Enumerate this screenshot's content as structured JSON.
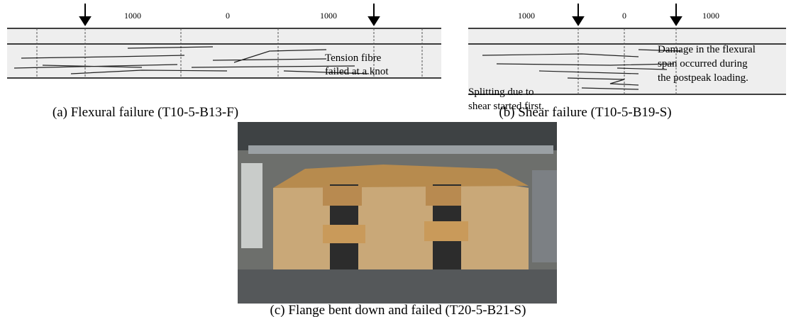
{
  "panels": [
    {
      "dimension_labels": [
        "1000",
        "0",
        "1000"
      ],
      "annotation": [
        "Tension fibre",
        "failed at a knot"
      ],
      "caption": "(a) Flexural failure (T10-5-B13-F)"
    },
    {
      "dimension_labels": [
        "1000",
        "0",
        "1000"
      ],
      "annotation": [
        "Splitting due to",
        "shear started first."
      ],
      "annotation_2": [
        "Damage in the flexural",
        "span occurred during",
        "the postpeak loading."
      ],
      "caption": "(b) Shear failure (T10-5-B19-S)"
    },
    {
      "caption": "(c) Flange bent down and failed (T20-5-B21-S)"
    }
  ]
}
